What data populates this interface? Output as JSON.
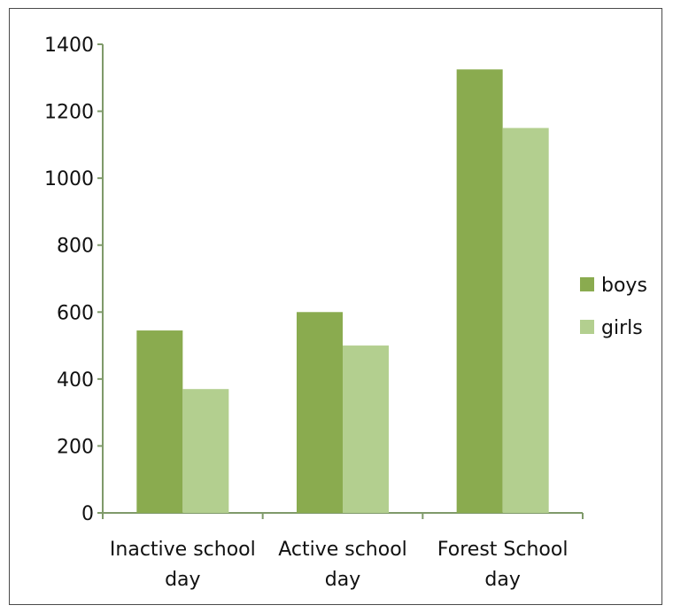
{
  "chart_data": {
    "type": "bar",
    "title": "",
    "xlabel": "",
    "ylabel": "",
    "categories": [
      [
        "Inactive school",
        "day"
      ],
      [
        "Active school",
        "day"
      ],
      [
        "Forest School",
        "day"
      ]
    ],
    "series": [
      {
        "name": "boys",
        "color": "#8aab4f",
        "values": [
          545,
          600,
          1325
        ]
      },
      {
        "name": "girls",
        "color": "#b3cf8f",
        "values": [
          370,
          500,
          1150
        ]
      }
    ],
    "ylim": [
      0,
      1400
    ],
    "yticks": [
      0,
      200,
      400,
      600,
      800,
      1000,
      1200,
      1400
    ],
    "grid": false,
    "legend_position": "right",
    "axis_color": "#7f9a6a"
  }
}
